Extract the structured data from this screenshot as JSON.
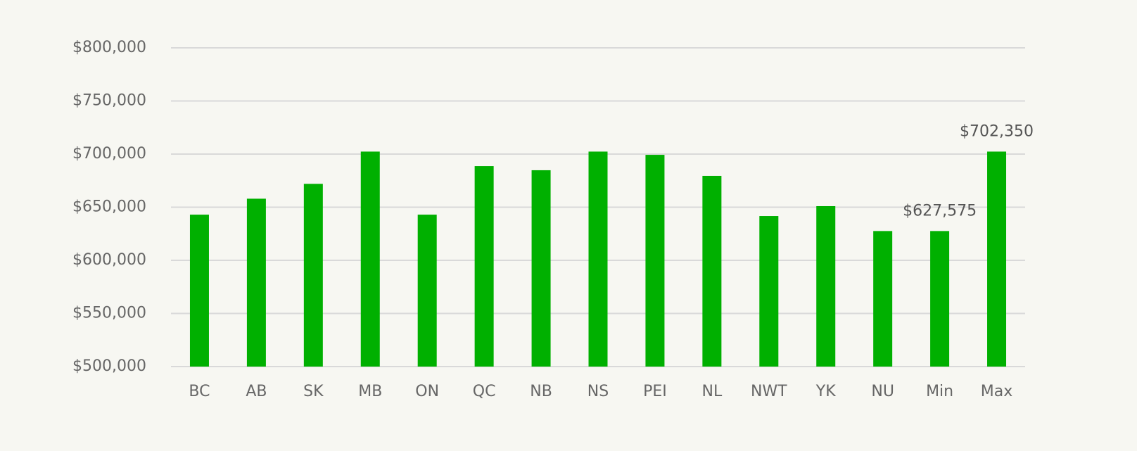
{
  "chart_data": {
    "type": "bar",
    "categories": [
      "BC",
      "AB",
      "SK",
      "MB",
      "ON",
      "QC",
      "NB",
      "NS",
      "PEI",
      "NL",
      "NWT",
      "YK",
      "NU",
      "Min",
      "Max"
    ],
    "values": [
      643000,
      658000,
      672000,
      702350,
      643000,
      688700,
      684800,
      702350,
      699300,
      679500,
      641700,
      651000,
      627575,
      627575,
      702350
    ],
    "value_labels": [
      null,
      null,
      null,
      null,
      null,
      null,
      null,
      null,
      null,
      null,
      null,
      null,
      null,
      "$627,575",
      "$702,350"
    ],
    "color": "#00b000",
    "ylim": [
      500000,
      800000
    ],
    "yticks": [
      {
        "value": 500000,
        "label": "$500,000"
      },
      {
        "value": 550000,
        "label": "$550,000"
      },
      {
        "value": 600000,
        "label": "$600,000"
      },
      {
        "value": 650000,
        "label": "$650,000"
      },
      {
        "value": 700000,
        "label": "$700,000"
      },
      {
        "value": 750000,
        "label": "$750,000"
      },
      {
        "value": 800000,
        "label": "$800,000"
      }
    ],
    "grid": true
  }
}
